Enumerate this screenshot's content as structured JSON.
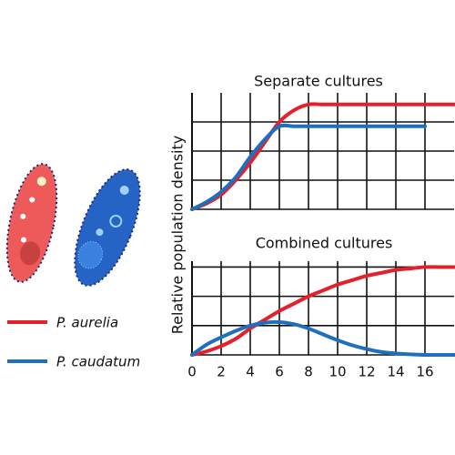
{
  "chart_data": [
    {
      "type": "line",
      "title": "Separate cultures",
      "ylabel": "Relative population density",
      "x": [
        0,
        1,
        2,
        3,
        4,
        5,
        6,
        7,
        8,
        9,
        10,
        11,
        12,
        13,
        14,
        15,
        16,
        17,
        18
      ],
      "series": [
        {
          "name": "P. aurelia",
          "color": "#e3202b",
          "values": [
            0,
            0.2,
            0.5,
            1.0,
            1.6,
            2.3,
            3.0,
            3.4,
            3.6,
            3.6,
            3.6,
            3.6,
            3.6,
            3.6,
            3.6,
            3.6,
            3.6,
            3.6,
            3.6
          ]
        },
        {
          "name": "P. caudatum",
          "color": "#1f6fbf",
          "values": [
            0,
            0.25,
            0.6,
            1.1,
            1.8,
            2.4,
            2.85,
            2.85,
            2.85,
            2.85,
            2.85,
            2.85,
            2.85,
            2.85,
            2.85,
            2.85,
            2.85,
            null,
            null
          ]
        }
      ],
      "xlim": [
        0,
        18
      ],
      "xticks": [
        0,
        2,
        4,
        6,
        8,
        10,
        12,
        14,
        16
      ],
      "ylim": [
        0,
        4
      ],
      "yticks": [
        0,
        1,
        2,
        3
      ],
      "grid": true
    },
    {
      "type": "line",
      "title": "Combined cultures",
      "x": [
        0,
        1,
        2,
        3,
        4,
        5,
        6,
        7,
        8,
        9,
        10,
        11,
        12,
        13,
        14,
        15,
        16,
        17,
        18
      ],
      "series": [
        {
          "color": "#e3202b",
          "values": [
            0,
            0.12,
            0.3,
            0.55,
            0.9,
            1.2,
            1.5,
            1.75,
            2.0,
            2.2,
            2.4,
            2.55,
            2.7,
            2.8,
            2.9,
            2.95,
            3.0,
            3.0,
            3.0
          ]
        },
        {
          "color": "#1f6fbf",
          "values": [
            0,
            0.35,
            0.6,
            0.82,
            1.0,
            1.1,
            1.12,
            1.05,
            0.9,
            0.7,
            0.5,
            0.33,
            0.2,
            0.1,
            0.05,
            0.02,
            0.0,
            0.0,
            0.0
          ]
        }
      ],
      "xlim": [
        0,
        18
      ],
      "xticks": [
        0,
        2,
        4,
        6,
        8,
        10,
        12,
        14,
        16
      ],
      "ylim": [
        0,
        3.2
      ],
      "yticks": [
        0,
        1,
        2,
        3
      ],
      "grid": true
    }
  ]
}
